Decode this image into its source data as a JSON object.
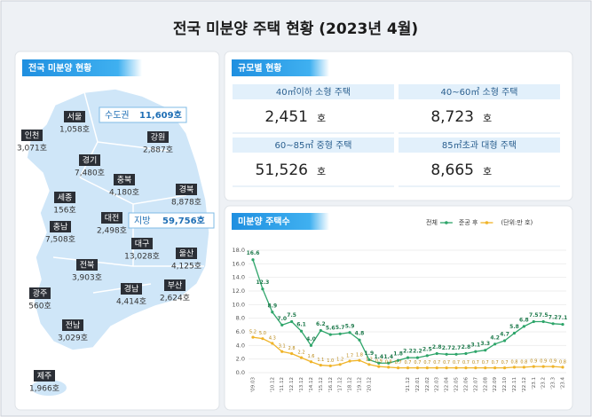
{
  "title": "전국 미분양 주택 현황  (2023년 4월)",
  "map": {
    "heading": "전국 미분양 현황",
    "capital": {
      "label": "수도권",
      "value": "11,609호"
    },
    "local": {
      "label": "지방",
      "value": "59,756호"
    },
    "regions": [
      {
        "name": "서울",
        "value": "1,058호"
      },
      {
        "name": "인천",
        "value": "3,071호"
      },
      {
        "name": "경기",
        "value": "7,480호"
      },
      {
        "name": "강원",
        "value": "2,887호"
      },
      {
        "name": "충북",
        "value": "4,180호"
      },
      {
        "name": "세종",
        "value": "156호"
      },
      {
        "name": "대전",
        "value": "2,498호"
      },
      {
        "name": "경북",
        "value": "8,878호"
      },
      {
        "name": "충남",
        "value": "7,508호"
      },
      {
        "name": "대구",
        "value": "13,028호"
      },
      {
        "name": "울산",
        "value": "4,125호"
      },
      {
        "name": "전북",
        "value": "3,903호"
      },
      {
        "name": "광주",
        "value": "560호"
      },
      {
        "name": "경남",
        "value": "4,414호"
      },
      {
        "name": "부산",
        "value": "2,624호"
      },
      {
        "name": "전남",
        "value": "3,029호"
      },
      {
        "name": "제주",
        "value": "1,966호"
      }
    ]
  },
  "size": {
    "heading": "규모별 현황",
    "items": [
      {
        "label": "40㎡이하 소형 주택",
        "value": "2,451",
        "unit": "호"
      },
      {
        "label": "40~60㎡ 소형 주택",
        "value": "8,723",
        "unit": "호"
      },
      {
        "label": "60~85㎡ 중형 주택",
        "value": "51,526",
        "unit": "호"
      },
      {
        "label": "85㎡초과 대형 주택",
        "value": "8,665",
        "unit": "호"
      }
    ]
  },
  "chart_data": {
    "type": "line",
    "title": "미분양 주택수",
    "unit_note": "(단위:만 호)",
    "categories": [
      "'09.03",
      null,
      "'10.12",
      "'11.12",
      "'12.12",
      "'13.12",
      "'14.12",
      "'15.12",
      "'16.12",
      "'17.12",
      "'18.12",
      "'19.12",
      "'20.12",
      null,
      null,
      null,
      "'21.12",
      "'22.01",
      "'22.02",
      "'22.03",
      "'22.04",
      "'22.05",
      "'22.06",
      "'22.07",
      "'22.08",
      "'22.09",
      "'22.10",
      "'22.11",
      "'22.12",
      "'23.1",
      "'23.2",
      "'23.3",
      "'23.4"
    ],
    "series": [
      {
        "name": "전체",
        "color": "#2ea56a",
        "values": [
          16.6,
          12.3,
          8.9,
          7.0,
          7.5,
          6.1,
          4.0,
          6.2,
          5.6,
          5.7,
          5.9,
          4.8,
          1.9,
          1.4,
          1.4,
          1.8,
          2.2,
          2.2,
          2.5,
          2.8,
          2.7,
          2.7,
          2.8,
          3.1,
          3.3,
          4.2,
          4.7,
          5.8,
          6.8,
          7.5,
          7.5,
          7.2,
          7.1
        ],
        "value_labels": [
          "16.6",
          "12.3",
          "8.9",
          "7.0",
          "7.5",
          "6.1",
          "4.0",
          "6.2",
          "5.6",
          "5.7",
          "5.9",
          "4.8",
          "1.9",
          "1.4",
          "1.4",
          "1.8",
          "2.2",
          "2.2",
          "2.5",
          "2.8",
          "2.7",
          "2.7",
          "2.8",
          "3.1",
          "3.3",
          "4.2",
          "4.7",
          "5.8",
          "6.8",
          "7.5",
          "7.5",
          "7.2",
          "7.1"
        ]
      },
      {
        "name": "준공 후",
        "color": "#f0b429",
        "values": [
          5.2,
          5.0,
          4.3,
          3.1,
          2.8,
          2.2,
          1.6,
          1.1,
          1.0,
          1.2,
          1.7,
          1.8,
          1.2,
          0.9,
          0.8,
          0.7,
          0.7,
          0.7,
          0.7,
          0.7,
          0.7,
          0.7,
          0.7,
          0.7,
          0.7,
          0.7,
          0.7,
          0.8,
          0.8,
          0.9,
          0.9,
          0.9,
          0.8
        ],
        "value_labels": [
          "5.2",
          "5.0",
          "4.3",
          "3.1",
          "2.8",
          "2.2",
          "1.6",
          "1.1",
          "1.0",
          "1.2",
          "1.7",
          "1.8",
          "1.2",
          "0.9",
          "0.8",
          "0.7",
          "0.7",
          "0.7",
          "0.7",
          "0.7",
          "0.7",
          "0.7",
          "0.7",
          "0.7",
          "0.7",
          "0.7",
          "0.7",
          "0.8",
          "0.8",
          "0.9",
          "0.9",
          "0.9",
          "0.8"
        ]
      }
    ],
    "ylim": [
      0,
      18
    ],
    "yticks": [
      {
        "value": 0,
        "label": "0.0"
      },
      {
        "value": 2,
        "label": "2.0"
      },
      {
        "value": 4,
        "label": "4.0"
      },
      {
        "value": 6,
        "label": "6.0"
      },
      {
        "value": 8,
        "label": "8.0"
      },
      {
        "value": 10,
        "label": "10.0"
      },
      {
        "value": 12,
        "label": "12.0"
      },
      {
        "value": 14,
        "label": "14.0"
      },
      {
        "value": 16,
        "label": "16.0"
      },
      {
        "value": 18,
        "label": "18.0"
      }
    ],
    "grid": true,
    "legend": "top-right"
  }
}
